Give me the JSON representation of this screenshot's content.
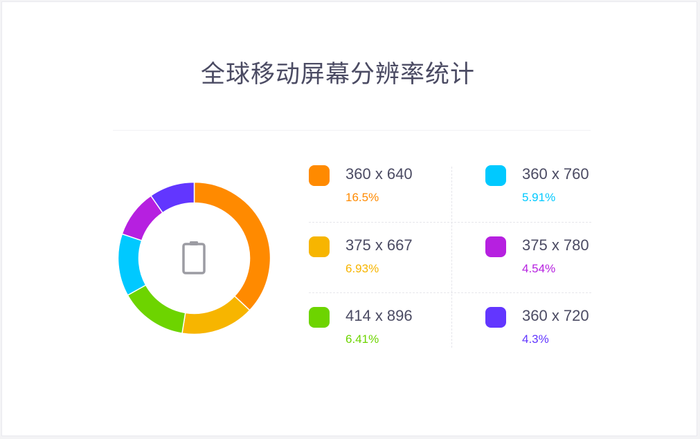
{
  "title": "全球移动屏幕分辨率统计",
  "chart_data": {
    "type": "pie",
    "title": "全球移动屏幕分辨率统计",
    "center_icon": "phone-icon",
    "categories": [
      "360 x 640",
      "375 x 667",
      "414 x 896",
      "360 x 760",
      "375 x 780",
      "360 x 720"
    ],
    "values": [
      16.5,
      6.93,
      6.41,
      5.91,
      4.54,
      4.3
    ],
    "labels": [
      "16.5%",
      "6.93%",
      "6.41%",
      "5.91%",
      "4.54%",
      "4.3%"
    ],
    "colors": [
      "#ff8a00",
      "#f7b500",
      "#6dd400",
      "#00c9ff",
      "#b620e0",
      "#6236ff"
    ]
  }
}
